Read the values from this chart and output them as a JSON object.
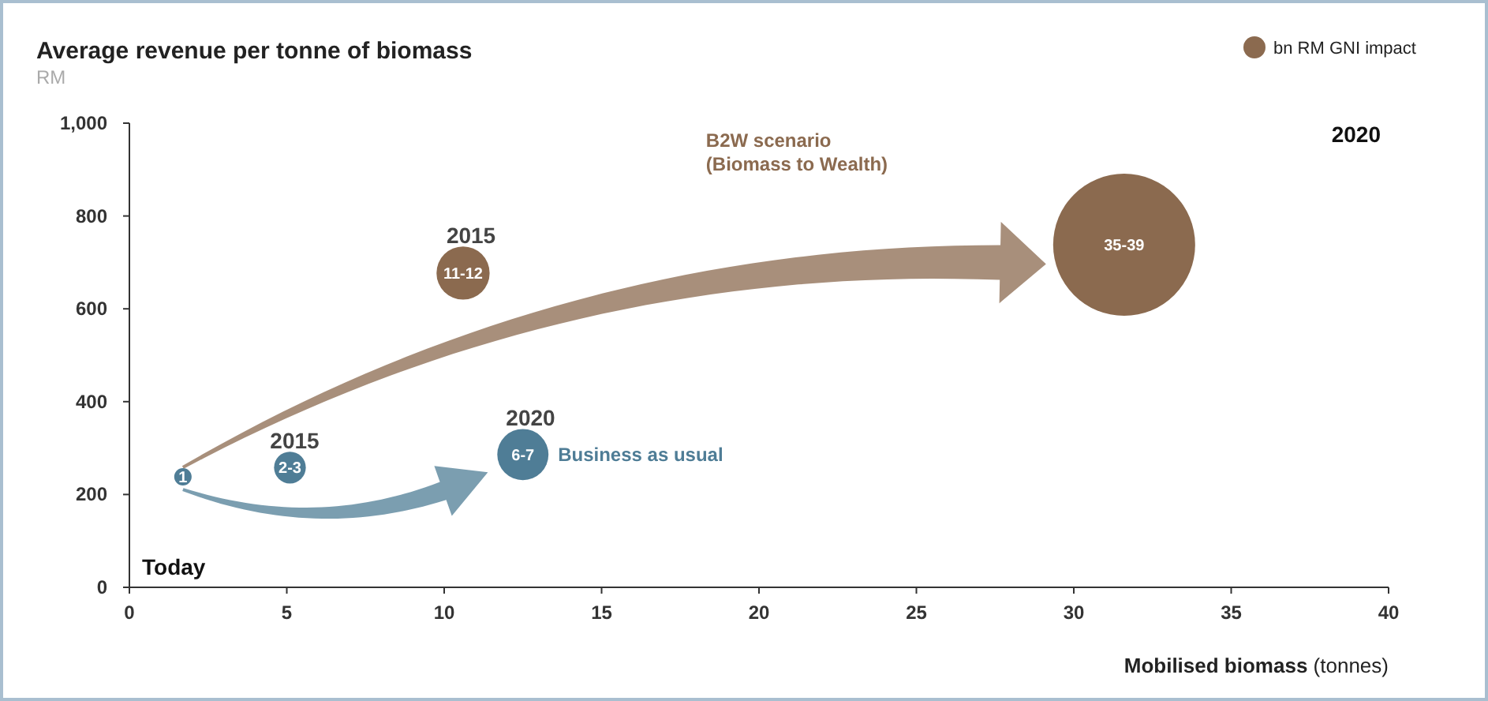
{
  "chart_data": {
    "type": "bubble",
    "title": "Average revenue per tonne of biomass",
    "ylabel": "RM",
    "xlabel": "Mobilised biomass (tonnes)",
    "legend_title": "bn RM GNI impact",
    "legend": "top right",
    "xlim": [
      0,
      40
    ],
    "xticks": [
      0,
      5,
      10,
      15,
      20,
      25,
      30,
      35,
      40
    ],
    "ylim": [
      0,
      1000
    ],
    "yticks": [
      0,
      200,
      400,
      600,
      800,
      {
        "value": 1000,
        "label": "1,000"
      }
    ],
    "series": [
      {
        "name": "Business as usual",
        "color": "#4f7d96",
        "x": [
          1.7,
          5.1,
          12.5
        ],
        "values": [
          238,
          258,
          286
        ],
        "sizes": [
          0.015,
          0.05,
          0.13
        ]
      },
      {
        "name": "B2W scenario (Biomass to Wealth)",
        "color": "#8b6a4f",
        "x": [
          10.6,
          31.6
        ],
        "values": [
          677,
          738
        ],
        "sizes": [
          0.14,
          1
        ]
      }
    ],
    "annotations": [
      {
        "text": "1",
        "x": 1.7,
        "y": 238
      },
      {
        "text": "2-3",
        "x": 5.1,
        "y": 258
      },
      {
        "text": "6-7",
        "x": 12.5,
        "y": 286
      },
      {
        "text": "11-12",
        "x": 10.6,
        "y": 677
      },
      {
        "text": "35-39",
        "x": 31.6,
        "y": 738
      },
      {
        "text": "2015",
        "x": 5.1,
        "y": 258
      },
      {
        "text": "2020",
        "x": 12.5,
        "y": 286
      },
      {
        "text": "2015",
        "x": 10.6,
        "y": 677
      },
      "Today",
      "2020"
    ]
  }
}
